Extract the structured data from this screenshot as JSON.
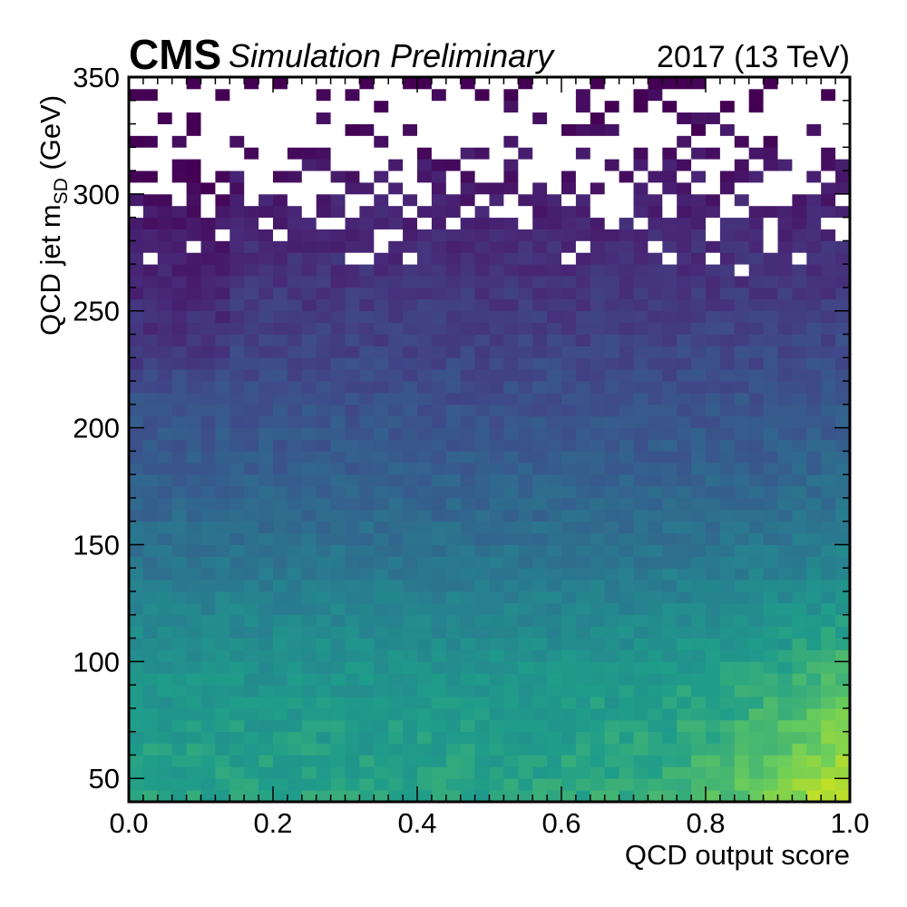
{
  "header": {
    "experiment": "CMS",
    "label": "Simulation Preliminary",
    "lumi": "2017 (13 TeV)"
  },
  "chart_data": {
    "type": "heatmap",
    "title": "",
    "xlabel": "QCD output score",
    "ylabel_main": "QCD jet m",
    "ylabel_sub": "SD",
    "ylabel_unit": " (GeV)",
    "xlim": [
      0.0,
      1.0
    ],
    "ylim": [
      40,
      350
    ],
    "x_bins": 50,
    "y_bin_width": 5,
    "colormap": "viridis",
    "empty_bin_color": "#ffffff",
    "x_ticks": [
      {
        "value": 0.0,
        "label": "0.0"
      },
      {
        "value": 0.2,
        "label": "0.2"
      },
      {
        "value": 0.4,
        "label": "0.4"
      },
      {
        "value": 0.6,
        "label": "0.6"
      },
      {
        "value": 0.8,
        "label": "0.8"
      },
      {
        "value": 1.0,
        "label": "1.0"
      }
    ],
    "y_ticks": [
      {
        "value": 50,
        "label": "50"
      },
      {
        "value": 100,
        "label": "100"
      },
      {
        "value": 150,
        "label": "150"
      },
      {
        "value": 200,
        "label": "200"
      },
      {
        "value": 250,
        "label": "250"
      },
      {
        "value": 300,
        "label": "300"
      },
      {
        "value": 350,
        "label": "350"
      }
    ],
    "density_model": {
      "description": "approximate normalized log-density: high at low mass and high score, decreasing with mass; sparse/empty bins above about 270 GeV",
      "peak_region": {
        "x": [
          0.92,
          1.0
        ],
        "y": [
          40,
          90
        ]
      },
      "sparse_above_mass": 265,
      "seed": 20170
    }
  }
}
